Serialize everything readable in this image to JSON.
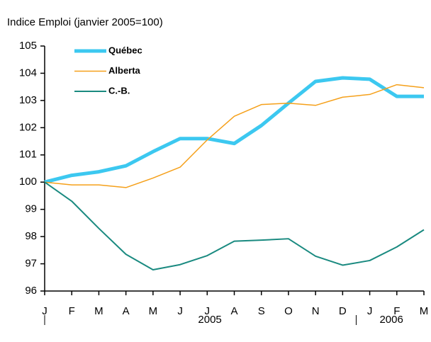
{
  "chart_data": {
    "type": "line",
    "title": "Indice Emploi (janvier 2005=100)",
    "categories": [
      "J",
      "F",
      "M",
      "A",
      "M",
      "J",
      "J",
      "A",
      "S",
      "O",
      "N",
      "D",
      "J",
      "F",
      "M"
    ],
    "year_labels": [
      "2005",
      "2006"
    ],
    "series": [
      {
        "name": "Québec",
        "color": "#3cc8f0",
        "values": [
          100,
          100.25,
          100.38,
          100.6,
          101.12,
          101.6,
          101.6,
          101.42,
          102.08,
          102.9,
          103.7,
          103.83,
          103.78,
          103.15,
          103.15
        ]
      },
      {
        "name": "Alberta",
        "color": "#f5a01a",
        "values": [
          100,
          99.9,
          99.9,
          99.8,
          100.15,
          100.55,
          101.55,
          102.42,
          102.85,
          102.9,
          102.82,
          103.12,
          103.22,
          103.58,
          103.47
        ]
      },
      {
        "name": "C.-B.",
        "color": "#1a8a80",
        "values": [
          100,
          99.3,
          98.3,
          97.35,
          96.78,
          96.97,
          97.3,
          97.83,
          97.87,
          97.92,
          97.28,
          96.95,
          97.12,
          97.62,
          98.25
        ]
      }
    ],
    "ylim": [
      96,
      105
    ],
    "yticks": [
      96,
      97,
      98,
      99,
      100,
      101,
      102,
      103,
      104,
      105
    ],
    "grid": false
  }
}
